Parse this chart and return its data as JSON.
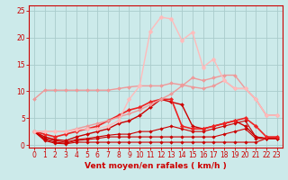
{
  "background_color": "#cceaea",
  "grid_color": "#aacccc",
  "xlabel": "Vent moyen/en rafales ( km/h )",
  "xlabel_color": "#cc0000",
  "tick_color": "#cc0000",
  "xlim": [
    -0.5,
    23.5
  ],
  "ylim": [
    -0.5,
    26
  ],
  "xticks": [
    0,
    1,
    2,
    3,
    4,
    5,
    6,
    7,
    8,
    9,
    10,
    11,
    12,
    13,
    14,
    15,
    16,
    17,
    18,
    19,
    20,
    21,
    22,
    23
  ],
  "yticks": [
    0,
    5,
    10,
    15,
    20,
    25
  ],
  "lines": [
    {
      "x": [
        0,
        1,
        2,
        3,
        4,
        5,
        6,
        7,
        8,
        9,
        10,
        11,
        12,
        13,
        14,
        15,
        16,
        17,
        18,
        19,
        20,
        21,
        22,
        23
      ],
      "y": [
        2.5,
        0.8,
        0.3,
        0.2,
        0.5,
        0.5,
        0.5,
        0.5,
        0.5,
        0.5,
        0.5,
        0.5,
        0.5,
        0.5,
        0.5,
        0.5,
        0.5,
        0.5,
        0.5,
        0.5,
        0.5,
        0.5,
        1.2,
        1.2
      ],
      "color": "#cc0000",
      "linewidth": 0.8,
      "marker": "D",
      "markersize": 1.8
    },
    {
      "x": [
        0,
        1,
        2,
        3,
        4,
        5,
        6,
        7,
        8,
        9,
        10,
        11,
        12,
        13,
        14,
        15,
        16,
        17,
        18,
        19,
        20,
        21,
        22,
        23
      ],
      "y": [
        2.5,
        1.0,
        0.5,
        0.3,
        0.8,
        1.0,
        1.2,
        1.5,
        1.5,
        1.5,
        1.5,
        1.5,
        1.5,
        1.5,
        1.5,
        1.5,
        1.5,
        1.5,
        2.0,
        2.5,
        3.0,
        1.2,
        1.2,
        1.2
      ],
      "color": "#cc0000",
      "linewidth": 0.8,
      "marker": "D",
      "markersize": 1.8
    },
    {
      "x": [
        0,
        1,
        2,
        3,
        4,
        5,
        6,
        7,
        8,
        9,
        10,
        11,
        12,
        13,
        14,
        15,
        16,
        17,
        18,
        19,
        20,
        21,
        22,
        23
      ],
      "y": [
        2.5,
        1.2,
        0.8,
        0.5,
        1.0,
        1.2,
        1.5,
        1.8,
        2.0,
        2.0,
        2.5,
        2.5,
        3.0,
        3.5,
        3.0,
        2.5,
        2.5,
        3.0,
        3.5,
        4.0,
        4.5,
        1.5,
        1.2,
        1.2
      ],
      "color": "#cc0000",
      "linewidth": 0.8,
      "marker": "D",
      "markersize": 1.8
    },
    {
      "x": [
        0,
        1,
        2,
        3,
        4,
        5,
        6,
        7,
        8,
        9,
        10,
        11,
        12,
        13,
        14,
        15,
        16,
        17,
        18,
        19,
        20,
        21,
        22,
        23
      ],
      "y": [
        2.5,
        1.5,
        1.0,
        0.8,
        1.5,
        2.0,
        2.5,
        3.0,
        4.0,
        4.5,
        5.5,
        7.0,
        8.5,
        8.0,
        7.5,
        3.5,
        3.0,
        3.5,
        4.0,
        4.5,
        3.5,
        1.5,
        1.2,
        1.2
      ],
      "color": "#cc0000",
      "linewidth": 1.0,
      "marker": "D",
      "markersize": 2.0
    },
    {
      "x": [
        0,
        1,
        2,
        3,
        4,
        5,
        6,
        7,
        8,
        9,
        10,
        11,
        12,
        13,
        14,
        15,
        16,
        17,
        18,
        19,
        20,
        21,
        22,
        23
      ],
      "y": [
        2.5,
        2.0,
        1.5,
        2.0,
        2.5,
        3.0,
        3.5,
        4.5,
        5.5,
        6.5,
        7.0,
        8.0,
        8.5,
        8.5,
        3.5,
        3.0,
        3.0,
        3.5,
        4.0,
        4.5,
        5.0,
        3.5,
        1.5,
        1.5
      ],
      "color": "#ee2222",
      "linewidth": 1.2,
      "marker": "D",
      "markersize": 2.2
    },
    {
      "x": [
        0,
        1,
        2,
        3,
        4,
        5,
        6,
        7,
        8,
        9,
        10,
        11,
        12,
        13,
        14,
        15,
        16,
        17,
        18,
        19,
        20,
        21,
        22,
        23
      ],
      "y": [
        8.5,
        10.2,
        10.2,
        10.2,
        10.2,
        10.2,
        10.2,
        10.2,
        10.5,
        10.8,
        11.0,
        11.0,
        11.0,
        11.5,
        11.2,
        10.8,
        10.5,
        11.0,
        12.0,
        10.5,
        10.5,
        8.5,
        5.5,
        5.5
      ],
      "color": "#ee9999",
      "linewidth": 1.0,
      "marker": "D",
      "markersize": 2.0
    },
    {
      "x": [
        0,
        1,
        2,
        3,
        4,
        5,
        6,
        7,
        8,
        9,
        10,
        11,
        12,
        13,
        14,
        15,
        16,
        17,
        18,
        19,
        20,
        21,
        22,
        23
      ],
      "y": [
        2.5,
        2.5,
        2.5,
        2.5,
        3.0,
        3.5,
        4.0,
        4.5,
        5.2,
        5.8,
        6.5,
        7.5,
        8.5,
        9.5,
        11.0,
        12.5,
        12.0,
        12.5,
        13.0,
        13.0,
        10.5,
        8.5,
        5.5,
        5.5
      ],
      "color": "#ee9999",
      "linewidth": 1.0,
      "marker": "D",
      "markersize": 2.0
    },
    {
      "x": [
        0,
        1,
        2,
        3,
        4,
        5,
        6,
        7,
        8,
        9,
        10,
        11,
        12,
        13,
        14,
        15,
        16,
        17,
        18,
        19,
        20,
        21,
        22,
        23
      ],
      "y": [
        2.5,
        2.5,
        2.5,
        2.5,
        2.8,
        3.0,
        3.0,
        3.5,
        4.5,
        8.5,
        11.0,
        21.2,
        23.8,
        23.5,
        19.5,
        21.0,
        14.5,
        16.0,
        12.0,
        10.5,
        10.5,
        8.5,
        5.5,
        5.5
      ],
      "color": "#ffbbbb",
      "linewidth": 1.0,
      "marker": "D",
      "markersize": 2.5
    }
  ]
}
